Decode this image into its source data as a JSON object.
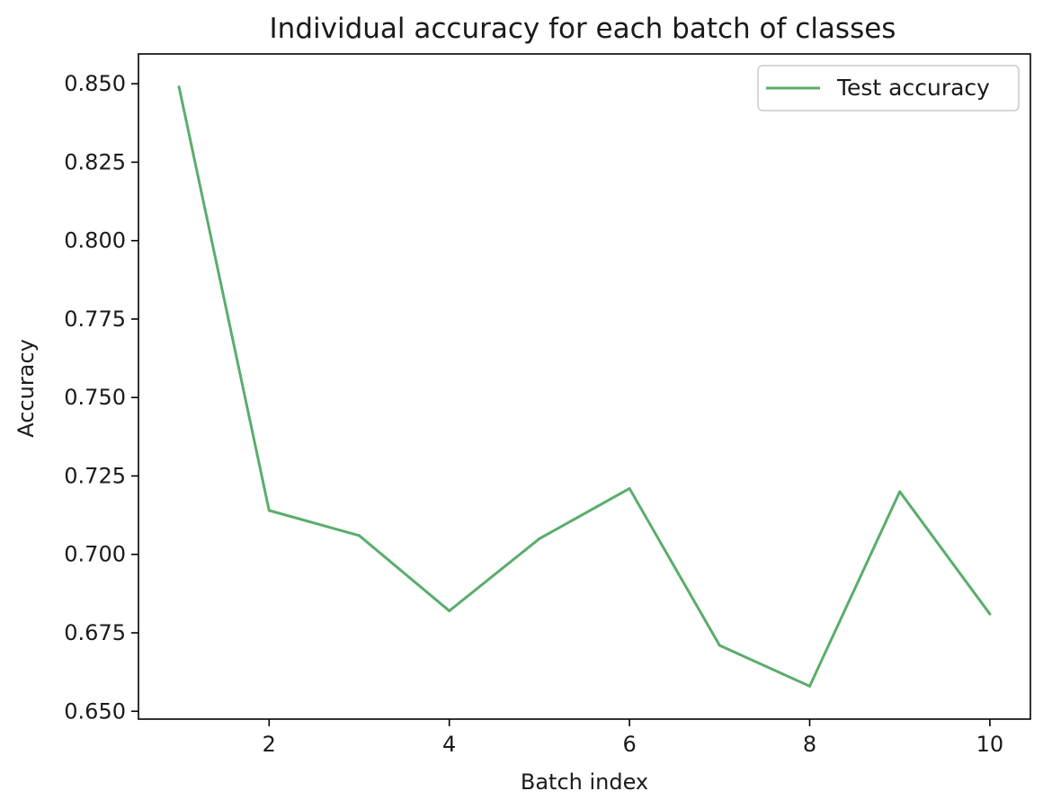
{
  "chart_data": {
    "type": "line",
    "title": "Individual accuracy for each batch of classes",
    "xlabel": "Batch index",
    "ylabel": "Accuracy",
    "x": [
      1,
      2,
      3,
      4,
      5,
      6,
      7,
      8,
      9,
      10
    ],
    "series": [
      {
        "name": "Test accuracy",
        "color": "#5aad6b",
        "values": [
          0.849,
          0.714,
          0.706,
          0.682,
          0.705,
          0.721,
          0.671,
          0.658,
          0.72,
          0.681
        ]
      }
    ],
    "xlim": [
      0.55,
      10.45
    ],
    "ylim": [
      0.6475,
      0.8595
    ],
    "xticks": [
      2,
      4,
      6,
      8,
      10
    ],
    "xtick_labels": [
      "2",
      "4",
      "6",
      "8",
      "10"
    ],
    "yticks": [
      0.65,
      0.675,
      0.7,
      0.725,
      0.75,
      0.775,
      0.8,
      0.825,
      0.85
    ],
    "ytick_labels": [
      "0.650",
      "0.675",
      "0.700",
      "0.725",
      "0.750",
      "0.775",
      "0.800",
      "0.825",
      "0.850"
    ],
    "grid": false,
    "legend_position": "top-right"
  }
}
